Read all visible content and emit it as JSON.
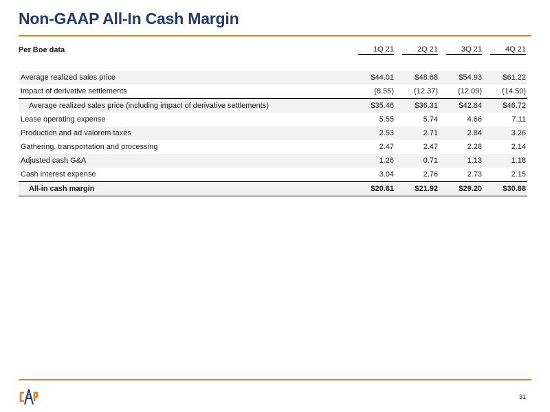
{
  "title": "Non-GAAP All-In Cash Margin",
  "table": {
    "header_label": "Per Boe data",
    "quarters": [
      "1Q 21",
      "2Q 21",
      "3Q 21",
      "4Q 21"
    ],
    "rows": [
      {
        "label": "Average realized sales price",
        "values": [
          "$44.01",
          "$48.68",
          "$54.93",
          "$61.22"
        ]
      },
      {
        "label": "Impact of derivative settlements",
        "values": [
          "(8.55)",
          "(12.37)",
          "(12.09)",
          "(14.50)"
        ]
      },
      {
        "label": "Average realized sales price (including impact of derivative settlements)",
        "values": [
          "$35.46",
          "$36.31",
          "$42.84",
          "$46.72"
        ]
      },
      {
        "label": "Lease operating expense",
        "values": [
          "5.55",
          "5.74",
          "4.66",
          "7.11"
        ]
      },
      {
        "label": "Production and ad valorem taxes",
        "values": [
          "2.53",
          "2.71",
          "2.84",
          "3.26"
        ]
      },
      {
        "label": "Gathering, transportation and processing",
        "values": [
          "2.47",
          "2.47",
          "2.28",
          "2.14"
        ]
      },
      {
        "label": "Adjusted cash G&A",
        "values": [
          "1.26",
          "0.71",
          "1.13",
          "1.18"
        ]
      },
      {
        "label": "Cash interest expense",
        "values": [
          "3.04",
          "2.76",
          "2.73",
          "2.15"
        ]
      },
      {
        "label": "All-in cash margin",
        "values": [
          "$20.61",
          "$21.92",
          "$29.20",
          "$30.88"
        ]
      }
    ]
  },
  "page_number": "31",
  "colors": {
    "title": "#1f3a6b",
    "accent": "#f07a22",
    "shade": "#f2f2f2"
  },
  "logo": {
    "icon": "cdev-logo-icon"
  }
}
